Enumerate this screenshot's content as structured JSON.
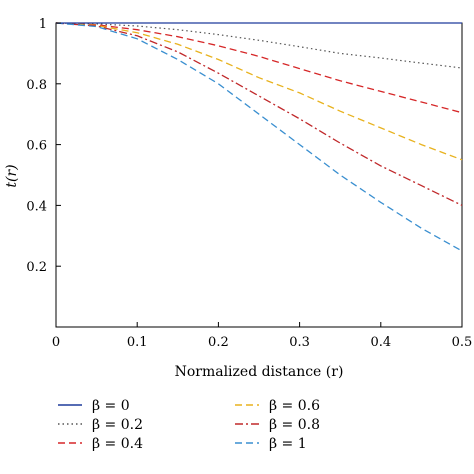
{
  "chart_data": {
    "type": "line",
    "title": "",
    "xlabel": "Normalized distance (r)",
    "ylabel": "t(r)",
    "xlim": [
      0,
      0.5
    ],
    "ylim": [
      0,
      1
    ],
    "xticks": [
      0,
      0.1,
      0.2,
      0.3,
      0.4,
      0.5
    ],
    "xtick_labels": [
      "0",
      "0.1",
      "0.2",
      "0.3",
      "0.4",
      "0.5"
    ],
    "yticks": [
      0.2,
      0.4,
      0.6,
      0.8,
      1.0
    ],
    "ytick_labels": [
      "0.2",
      "0.4",
      "0.6",
      "0.8",
      "1"
    ],
    "grid": false,
    "legend_position": "bottom",
    "x": [
      0,
      0.05,
      0.1,
      0.15,
      0.2,
      0.25,
      0.3,
      0.35,
      0.4,
      0.45,
      0.5
    ],
    "series": [
      {
        "name": "β = 0",
        "color": "#1f3b9c",
        "dash": "solid",
        "values": [
          1,
          1,
          1,
          1,
          1,
          1,
          1,
          1,
          1,
          1,
          1
        ]
      },
      {
        "name": "β = 0.2",
        "color": "#555555",
        "dash": "dotted",
        "values": [
          1,
          0.997,
          0.99,
          0.978,
          0.962,
          0.943,
          0.922,
          0.9,
          0.885,
          0.868,
          0.852
        ]
      },
      {
        "name": "β = 0.4",
        "color": "#d62728",
        "dash": "dashed",
        "values": [
          1,
          0.994,
          0.978,
          0.955,
          0.925,
          0.89,
          0.85,
          0.81,
          0.775,
          0.74,
          0.705
        ]
      },
      {
        "name": "β = 0.6",
        "color": "#e8b21e",
        "dash": "dashed",
        "values": [
          1,
          0.992,
          0.968,
          0.93,
          0.88,
          0.82,
          0.77,
          0.71,
          0.655,
          0.6,
          0.55
        ]
      },
      {
        "name": "β = 0.8",
        "color": "#c0282a",
        "dash": "dashdot",
        "values": [
          1,
          0.99,
          0.958,
          0.905,
          0.835,
          0.76,
          0.685,
          0.605,
          0.53,
          0.465,
          0.4
        ]
      },
      {
        "name": "β = 1",
        "color": "#3a8fd0",
        "dash": "dashed",
        "values": [
          1,
          0.988,
          0.948,
          0.88,
          0.8,
          0.7,
          0.6,
          0.5,
          0.41,
          0.325,
          0.25
        ]
      }
    ]
  }
}
